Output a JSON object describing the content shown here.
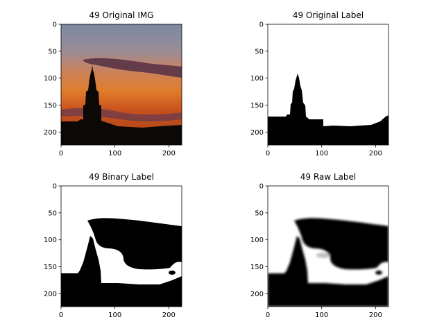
{
  "chart_data": [
    {
      "type": "image",
      "title": "49 Original IMG",
      "xlim": [
        0,
        224
      ],
      "ylim": [
        224,
        0
      ],
      "xticks": [
        0,
        100,
        200
      ],
      "yticks": [
        0,
        50,
        100,
        150,
        200
      ],
      "content": "sunset photo with spire silhouette"
    },
    {
      "type": "image",
      "title": "49 Original Label",
      "xlim": [
        0,
        224
      ],
      "ylim": [
        224,
        0
      ],
      "xticks": [
        0,
        100,
        200
      ],
      "yticks": [
        0,
        50,
        100,
        150,
        200
      ],
      "content": "binary mask: spire and ground black, sky white"
    },
    {
      "type": "image",
      "title": "49 Binary Label",
      "xlim": [
        0,
        224
      ],
      "ylim": [
        224,
        0
      ],
      "xticks": [
        0,
        100,
        200
      ],
      "yticks": [
        0,
        50,
        100,
        150,
        200
      ],
      "content": "binary prediction mask"
    },
    {
      "type": "image",
      "title": "49 Raw Label",
      "xlim": [
        0,
        224
      ],
      "ylim": [
        224,
        0
      ],
      "xticks": [
        0,
        100,
        200
      ],
      "yticks": [
        0,
        50,
        100,
        150,
        200
      ],
      "content": "soft prediction mask (blurred)"
    }
  ]
}
